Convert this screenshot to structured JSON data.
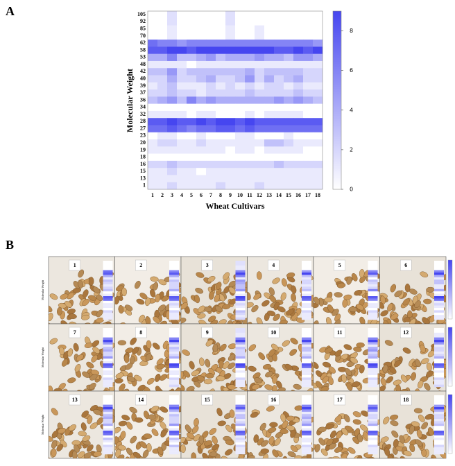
{
  "chart_data": [
    {
      "type": "heatmap",
      "panel": "A",
      "x_label": "Wheat Cultivars",
      "y_label": "Molecular Weight",
      "x_categories": [
        1,
        2,
        3,
        4,
        5,
        6,
        7,
        8,
        9,
        10,
        11,
        12,
        13,
        14,
        15,
        16,
        17,
        18
      ],
      "y_categories": [
        105,
        92,
        85,
        70,
        62,
        58,
        53,
        48,
        42,
        40,
        39,
        37,
        36,
        34,
        32,
        28,
        27,
        23,
        20,
        19,
        18,
        16,
        15,
        13,
        1
      ],
      "z": [
        [
          0,
          0,
          1.5,
          0,
          0,
          0,
          0,
          0,
          1.5,
          0,
          0,
          0,
          0,
          0,
          0,
          0,
          0,
          0
        ],
        [
          0,
          0,
          1.5,
          0,
          0,
          0,
          0,
          0,
          1.5,
          0,
          0,
          0,
          0,
          0,
          0,
          0,
          0,
          0
        ],
        [
          0,
          0,
          1,
          0,
          0,
          0,
          0,
          0,
          1,
          0,
          0,
          1,
          0,
          0,
          0,
          0,
          0,
          0
        ],
        [
          0,
          0,
          1,
          0,
          0,
          0,
          0,
          0,
          1,
          0,
          0,
          1,
          0,
          0,
          0,
          0,
          0,
          0
        ],
        [
          7,
          6,
          6,
          5,
          6,
          6,
          6,
          6,
          6,
          6,
          6,
          6,
          6,
          6,
          6,
          6,
          6,
          5
        ],
        [
          8,
          8,
          9,
          9,
          8,
          9,
          9,
          9,
          9,
          9,
          9,
          9,
          9,
          8,
          8,
          9,
          8,
          9
        ],
        [
          4,
          4,
          6,
          3,
          3,
          4,
          5,
          3,
          4,
          4,
          4,
          5,
          4,
          4,
          3,
          5,
          5,
          4
        ],
        [
          1,
          1,
          1,
          1,
          0,
          1,
          1,
          1,
          1,
          1,
          1,
          1,
          1,
          1,
          1,
          1,
          1,
          1
        ],
        [
          3,
          3,
          5,
          2,
          3,
          3,
          3,
          3,
          3,
          3,
          4,
          2,
          3,
          3,
          3,
          3,
          2,
          2
        ],
        [
          2,
          2,
          4,
          2,
          2,
          3,
          4,
          2,
          2,
          3,
          5,
          2,
          4,
          2,
          3,
          4,
          2,
          2
        ],
        [
          1,
          2,
          3,
          1,
          1,
          1,
          2,
          1,
          2,
          1,
          2,
          1,
          2,
          2,
          1,
          2,
          1,
          1
        ],
        [
          2,
          2,
          3,
          2,
          2,
          1,
          2,
          2,
          2,
          2,
          3,
          2,
          2,
          2,
          2,
          3,
          2,
          2
        ],
        [
          3,
          4,
          5,
          3,
          6,
          4,
          5,
          4,
          4,
          4,
          4,
          4,
          4,
          5,
          4,
          5,
          4,
          3
        ],
        [
          0,
          0,
          0,
          0,
          0,
          0,
          0,
          0,
          0,
          0,
          0,
          0,
          0,
          0,
          0,
          0,
          0,
          0
        ],
        [
          1,
          1,
          1,
          1,
          0,
          1,
          1,
          0,
          0,
          0,
          1,
          0,
          1,
          1,
          1,
          1,
          0,
          0
        ],
        [
          8,
          8,
          9,
          8,
          8,
          9,
          8,
          9,
          9,
          8,
          9,
          8,
          8,
          8,
          8,
          8,
          8,
          8
        ],
        [
          7,
          7,
          8,
          7,
          6,
          7,
          7,
          8,
          8,
          7,
          8,
          7,
          7,
          7,
          7,
          7,
          7,
          7
        ],
        [
          0,
          1,
          1,
          0,
          0,
          1,
          0,
          0,
          0,
          1,
          1,
          0,
          0,
          0,
          1,
          0,
          0,
          0
        ],
        [
          1,
          2,
          2,
          1,
          1,
          2,
          1,
          1,
          1,
          1,
          1,
          1,
          3,
          3,
          2,
          1,
          1,
          1
        ],
        [
          1,
          1,
          1,
          1,
          1,
          1,
          1,
          1,
          0,
          1,
          1,
          0,
          1,
          1,
          1,
          1,
          0,
          0
        ],
        [
          0,
          0,
          0,
          0,
          0,
          0,
          0,
          0,
          0,
          0,
          0,
          0,
          0,
          0,
          0,
          0,
          0,
          0
        ],
        [
          2,
          2,
          3,
          2,
          2,
          2,
          2,
          2,
          2,
          2,
          2,
          2,
          2,
          3,
          2,
          2,
          2,
          2
        ],
        [
          1,
          1,
          2,
          1,
          1,
          0,
          1,
          1,
          1,
          1,
          1,
          1,
          1,
          1,
          1,
          1,
          1,
          1
        ],
        [
          1,
          1,
          1,
          1,
          1,
          1,
          1,
          1,
          1,
          1,
          1,
          1,
          1,
          1,
          1,
          1,
          1,
          1
        ],
        [
          1,
          1,
          2,
          1,
          1,
          1,
          1,
          2,
          1,
          1,
          1,
          2,
          1,
          1,
          1,
          1,
          1,
          1
        ]
      ],
      "clim": [
        0,
        9
      ],
      "cticks": [
        0,
        2,
        4,
        6,
        8
      ],
      "color": "#4646f0"
    },
    {
      "type": "image-grid",
      "panel": "B",
      "y_label": "Molecular Weight",
      "tiles": [
        "1",
        "2",
        "3",
        "4",
        "5",
        "6",
        "7",
        "8",
        "9",
        "10",
        "11",
        "12",
        "13",
        "14",
        "15",
        "16",
        "17",
        "18"
      ]
    }
  ]
}
